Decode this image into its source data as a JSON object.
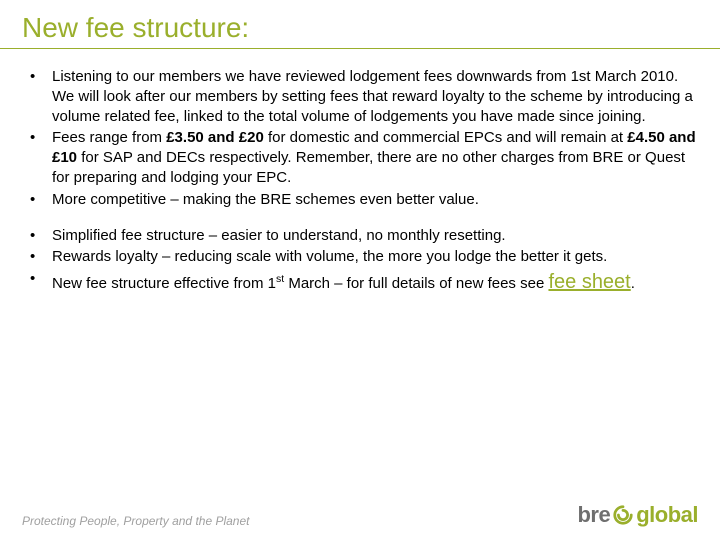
{
  "colors": {
    "accent": "#9aaf2c",
    "text": "#000000",
    "tagline": "#a0a0a0",
    "rule": "#9aaf2c",
    "link": "#9aaf2c"
  },
  "title": "New fee structure:",
  "group1": [
    {
      "html": "Listening to our members we have reviewed lodgement fees downwards from 1st March 2010. We will look after our members by setting fees that reward loyalty to the scheme by introducing a volume related fee, linked to the total volume of lodgements you have made since joining."
    },
    {
      "html": "Fees range from <span class=\"bold\">£3.50 and £20</span> for domestic and commercial EPCs and will remain at <span class=\"bold\">£4.50 and £10</span> for SAP and DECs respectively. Remember, there are no other charges from BRE or Quest for preparing and lodging your EPC."
    },
    {
      "html": "More competitive – making the BRE schemes even better value."
    }
  ],
  "group2": [
    {
      "html": "Simplified fee structure – easier to understand, no monthly resetting."
    },
    {
      "html": "Rewards loyalty – reducing scale with volume, the more you lodge the better it gets."
    },
    {
      "html": "New fee structure effective from 1<span class=\"sup\">st</span> March – for full details of new fees see <span class=\"link\" data-name=\"fee-sheet-link\" data-interactable=\"true\">fee sheet</span>."
    }
  ],
  "footer": {
    "tagline": "Protecting People, Property and the Planet",
    "logo_bre": "bre",
    "logo_global": "global"
  }
}
